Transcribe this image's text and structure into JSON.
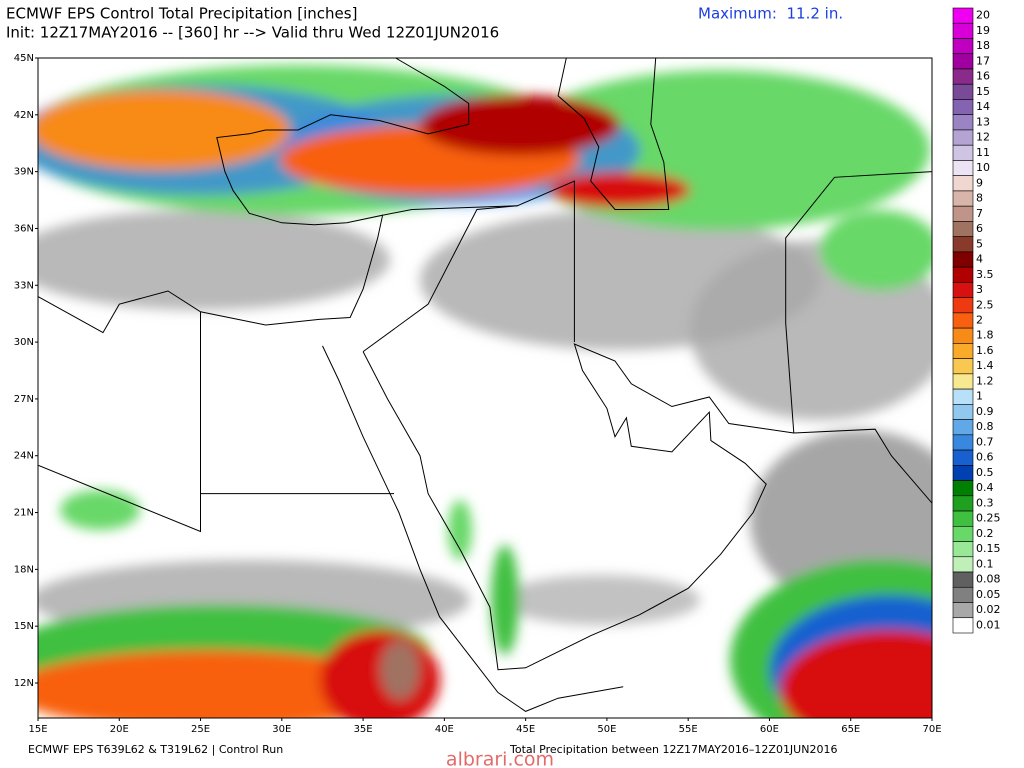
{
  "header": {
    "title": "ECMWF EPS Control Total Precipitation [inches]",
    "init": "Init: 12Z17MAY2016 -- [360] hr --> Valid thru Wed 12Z01JUN2016",
    "maximum": "Maximum:  11.2 in."
  },
  "legend": [
    {
      "label": "20",
      "color": "#f000f0"
    },
    {
      "label": "19",
      "color": "#d800d8"
    },
    {
      "label": "18",
      "color": "#c000c0"
    },
    {
      "label": "17",
      "color": "#a000a0"
    },
    {
      "label": "16",
      "color": "#8a2a8a"
    },
    {
      "label": "15",
      "color": "#784a98"
    },
    {
      "label": "14",
      "color": "#8464b0"
    },
    {
      "label": "13",
      "color": "#9a84c4"
    },
    {
      "label": "12",
      "color": "#b4a4d4"
    },
    {
      "label": "11",
      "color": "#d0c4e4"
    },
    {
      "label": "10",
      "color": "#ece4f4"
    },
    {
      "label": "9",
      "color": "#f0d8d0"
    },
    {
      "label": "8",
      "color": "#d8b4aa"
    },
    {
      "label": "7",
      "color": "#c09488"
    },
    {
      "label": "6",
      "color": "#a07262"
    },
    {
      "label": "5",
      "color": "#8a3a2a"
    },
    {
      "label": "4",
      "color": "#800000"
    },
    {
      "label": "3.5",
      "color": "#b00000"
    },
    {
      "label": "3",
      "color": "#d81010"
    },
    {
      "label": "2.5",
      "color": "#ee3a10"
    },
    {
      "label": "2",
      "color": "#f86010"
    },
    {
      "label": "1.8",
      "color": "#f88a18"
    },
    {
      "label": "1.6",
      "color": "#f8aa28"
    },
    {
      "label": "1.4",
      "color": "#f8c850"
    },
    {
      "label": "1.2",
      "color": "#f8e890"
    },
    {
      "label": "1",
      "color": "#b8e0f8"
    },
    {
      "label": "0.9",
      "color": "#90c8f0"
    },
    {
      "label": "0.8",
      "color": "#60a8e8"
    },
    {
      "label": "0.7",
      "color": "#3888e0"
    },
    {
      "label": "0.6",
      "color": "#1860d0"
    },
    {
      "label": "0.5",
      "color": "#0040b0"
    },
    {
      "label": "0.4",
      "color": "#008000"
    },
    {
      "label": "0.3",
      "color": "#20a020"
    },
    {
      "label": "0.25",
      "color": "#40c040"
    },
    {
      "label": "0.2",
      "color": "#68d868"
    },
    {
      "label": "0.15",
      "color": "#98e898"
    },
    {
      "label": "0.1",
      "color": "#c0f0b8"
    },
    {
      "label": "0.08",
      "color": "#606060"
    },
    {
      "label": "0.05",
      "color": "#808080"
    },
    {
      "label": "0.02",
      "color": "#a8a8a8"
    },
    {
      "label": "0.01",
      "color": "#ffffff"
    }
  ],
  "axes": {
    "latitudes": [
      "45N",
      "42N",
      "39N",
      "36N",
      "33N",
      "30N",
      "27N",
      "24N",
      "21N",
      "18N",
      "15N",
      "12N"
    ],
    "longitudes": [
      "15E",
      "20E",
      "25E",
      "30E",
      "35E",
      "40E",
      "45E",
      "50E",
      "55E",
      "60E",
      "65E",
      "70E"
    ]
  },
  "footer": {
    "left": "ECMWF EPS T639L62 & T319L62 | Control Run",
    "right": "Total Precipitation between 12Z17MAY2016–12Z01JUN2016"
  },
  "watermark": "albrari.com"
}
